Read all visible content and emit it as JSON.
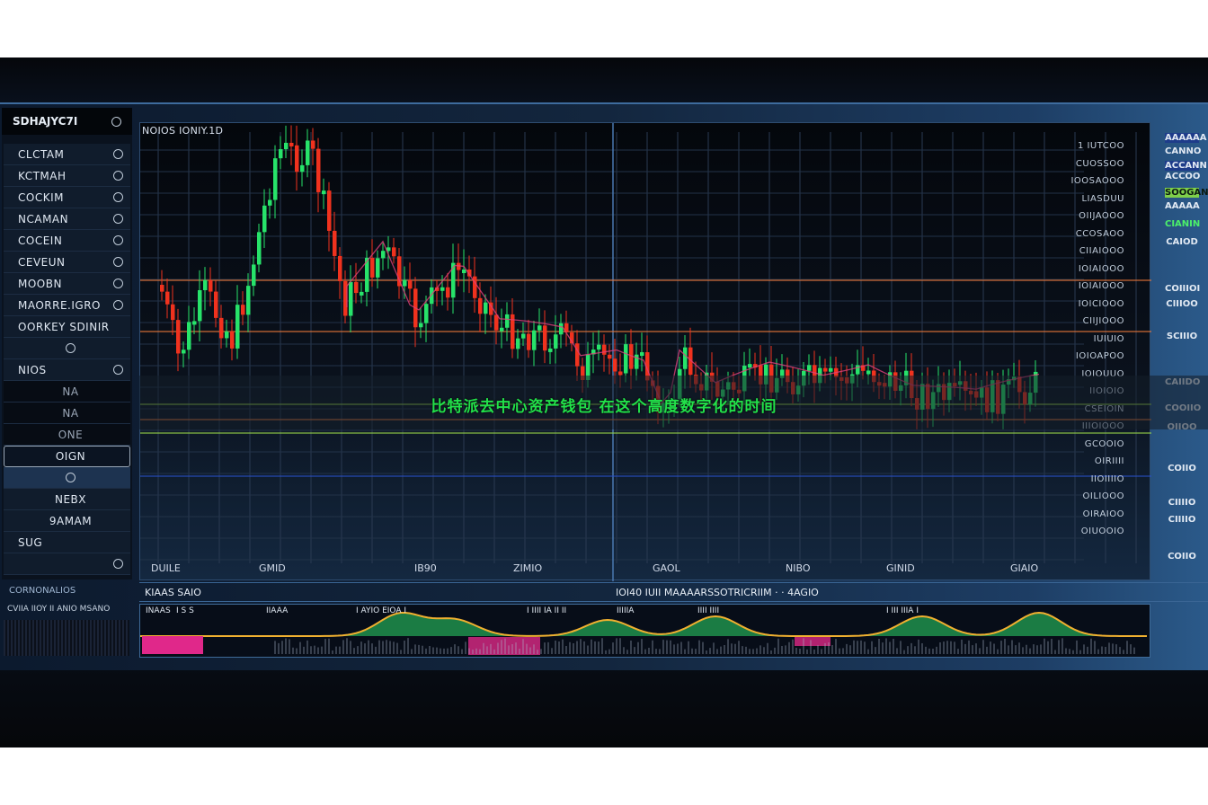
{
  "caption": "比特派去中心资产钱包 在这个高度数字化的时间",
  "sidebar": {
    "title": "SDHAJYC7I",
    "items": [
      {
        "label": "CLCTAM"
      },
      {
        "label": "KCTMAH"
      },
      {
        "label": "COCKIM"
      },
      {
        "label": "NCAMAN"
      },
      {
        "label": "COCEIN"
      },
      {
        "label": "CEVEUN"
      },
      {
        "label": "MOOBN"
      },
      {
        "label": "MAORRE.IGRO"
      },
      {
        "label": "OORKEY SDINIR"
      },
      {
        "label": ""
      },
      {
        "label": "NIOS"
      },
      {
        "label": "NA"
      },
      {
        "label": "NA"
      },
      {
        "label": "ONE"
      },
      {
        "label": "OIGN"
      },
      {
        "label": ""
      },
      {
        "label": "NEBX"
      },
      {
        "label": "9AMAM"
      },
      {
        "label": "SUG"
      },
      {
        "label": ""
      }
    ]
  },
  "chart": {
    "title": "NOIOS IONIY.1D",
    "x_labels": [
      "DUILE",
      "GMID",
      "IB90",
      "ZIMIO",
      "GAOL",
      "NIBO",
      "GINID",
      "GIAIO"
    ],
    "y_labels": [
      "1 IUTCOO",
      "CUOSSOO",
      "IOOSAOOO",
      "LIASDUU",
      "OIIJAOOO",
      "CCOSAOO",
      "CIIAIOOO",
      "IOIAIOOO",
      "IOIAIOOO",
      "IOICIOOO",
      "CIIJIOOO",
      "IUIUIO",
      "IOIOAPOO",
      "IOIOUUO",
      "IIOIOIO",
      "CSEIOIN",
      "IIIOIOOO",
      "GCOOIO",
      "OIRIIII",
      "IIOIIIIO",
      "OILIOOO",
      "OIRAIOO",
      "OIUOOIO"
    ],
    "right_labels": [
      "AAAAAA",
      "CANNO",
      "ACCANN",
      "ACCOO",
      "SOOGAN",
      "AAAAA",
      "CIANIN",
      "CAIOD",
      "COIIIOI",
      "CIIIOO",
      "SCIIIO",
      "CAIIDO",
      "COOIIO",
      "OIIOO",
      "COIIO",
      "CIIIIO",
      "CIIIIO",
      "COIIO"
    ],
    "colors": {
      "up": "#27e36a",
      "down": "#f0321e",
      "ma": "#e0407a",
      "level_orange": "#f07a3a",
      "level_green": "#9ad84a",
      "level_blue": "#2a50c8",
      "caption": "#22e04a"
    }
  },
  "bottom": {
    "left_head": "CORNONALIOS",
    "left_sub": "CVIIA IIOY  II  ANIO MSANO",
    "indicator_title": "KIAAS SAIO",
    "indicator_title_2": "IOI40  IUII  MAAAARSSOTRICRIIM  ·  ·  4AGIO",
    "indicator_labels": [
      "INAAS",
      "I  S S",
      "IIAAA",
      "I  AYIO EIOA I",
      "I IIII IA II II",
      "IIIIIA",
      "IIII  IIII",
      "I  III  IIIA I"
    ]
  }
}
